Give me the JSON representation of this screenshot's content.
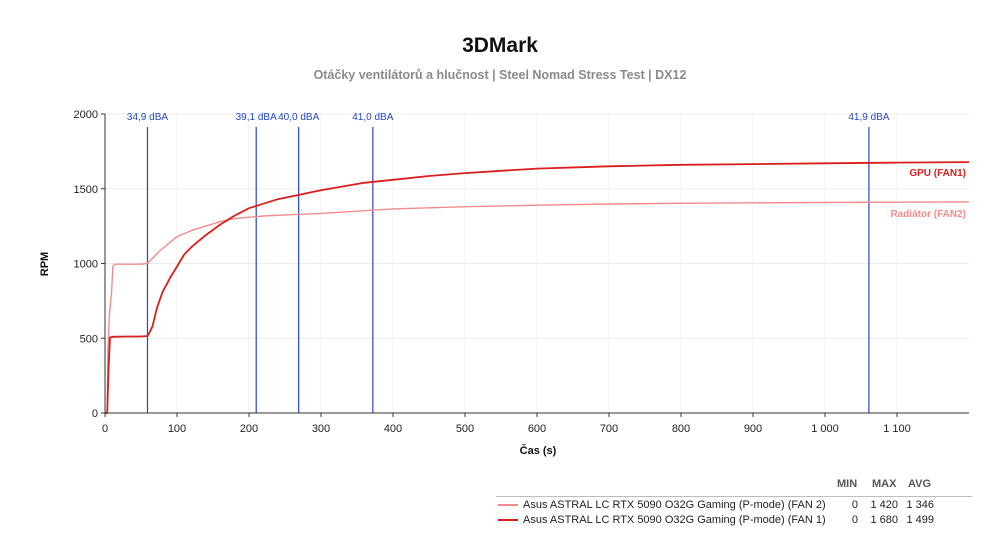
{
  "chart_data": {
    "type": "line",
    "title": "3DMark",
    "subtitle": "Otáčky ventilátorů a hlučnost | Steel Nomad Stress Test | DX12",
    "xlabel": "Čas (s)",
    "ylabel": "RPM",
    "xlim": [
      0,
      1200
    ],
    "ylim": [
      0,
      2000
    ],
    "x_ticks": [
      {
        "v": 0,
        "label": "0"
      },
      {
        "v": 100,
        "label": "100"
      },
      {
        "v": 200,
        "label": "200"
      },
      {
        "v": 300,
        "label": "300"
      },
      {
        "v": 400,
        "label": "400"
      },
      {
        "v": 500,
        "label": "500"
      },
      {
        "v": 600,
        "label": "600"
      },
      {
        "v": 700,
        "label": "700"
      },
      {
        "v": 800,
        "label": "800"
      },
      {
        "v": 900,
        "label": "900"
      },
      {
        "v": 1000,
        "label": "1 000"
      },
      {
        "v": 1100,
        "label": "1 100"
      }
    ],
    "y_ticks": [
      {
        "v": 0,
        "label": "0"
      },
      {
        "v": 500,
        "label": "500"
      },
      {
        "v": 1000,
        "label": "1000"
      },
      {
        "v": 1500,
        "label": "1500"
      },
      {
        "v": 2000,
        "label": "2000"
      }
    ],
    "grid": true,
    "noise_markers": [
      {
        "x": 59,
        "label": "34,9 dBA"
      },
      {
        "x": 210,
        "label": "39,1 dBA"
      },
      {
        "x": 269,
        "label": "40,0 dBA"
      },
      {
        "x": 372,
        "label": "41,0 dBA"
      },
      {
        "x": 1061,
        "label": "41,9 dBA"
      }
    ],
    "series": [
      {
        "name": "GPU (FAN1)",
        "legend_name": "Asus ASTRAL LC RTX 5090 O32G Gaming (P-mode) (FAN 1)",
        "color": "#d91e1e",
        "min": "0",
        "max": "1 680",
        "avg": "1 499",
        "points": [
          [
            0,
            0
          ],
          [
            3,
            0
          ],
          [
            5,
            300
          ],
          [
            7,
            505
          ],
          [
            10,
            510
          ],
          [
            30,
            512
          ],
          [
            50,
            512
          ],
          [
            59,
            515
          ],
          [
            62,
            540
          ],
          [
            66,
            580
          ],
          [
            72,
            700
          ],
          [
            80,
            810
          ],
          [
            90,
            900
          ],
          [
            100,
            980
          ],
          [
            110,
            1060
          ],
          [
            120,
            1110
          ],
          [
            140,
            1190
          ],
          [
            160,
            1260
          ],
          [
            180,
            1320
          ],
          [
            200,
            1370
          ],
          [
            220,
            1400
          ],
          [
            240,
            1430
          ],
          [
            260,
            1450
          ],
          [
            280,
            1470
          ],
          [
            300,
            1490
          ],
          [
            330,
            1515
          ],
          [
            360,
            1540
          ],
          [
            400,
            1560
          ],
          [
            450,
            1585
          ],
          [
            500,
            1605
          ],
          [
            550,
            1620
          ],
          [
            600,
            1635
          ],
          [
            700,
            1650
          ],
          [
            800,
            1660
          ],
          [
            900,
            1665
          ],
          [
            1000,
            1670
          ],
          [
            1100,
            1675
          ],
          [
            1200,
            1678
          ]
        ]
      },
      {
        "name": "Radiátor (FAN2)",
        "legend_name": "Asus ASTRAL LC RTX 5090 O32G Gaming (P-mode) (FAN 2)",
        "color": "#f28c8c",
        "min": "0",
        "max": "1 420",
        "avg": "1 346",
        "points": [
          [
            0,
            0
          ],
          [
            3,
            0
          ],
          [
            4,
            400
          ],
          [
            6,
            650
          ],
          [
            9,
            800
          ],
          [
            11,
            980
          ],
          [
            14,
            995
          ],
          [
            30,
            995
          ],
          [
            50,
            995
          ],
          [
            59,
            1000
          ],
          [
            65,
            1030
          ],
          [
            75,
            1080
          ],
          [
            90,
            1140
          ],
          [
            100,
            1180
          ],
          [
            120,
            1220
          ],
          [
            140,
            1250
          ],
          [
            160,
            1280
          ],
          [
            180,
            1300
          ],
          [
            200,
            1310
          ],
          [
            220,
            1318
          ],
          [
            250,
            1325
          ],
          [
            300,
            1335
          ],
          [
            350,
            1350
          ],
          [
            400,
            1365
          ],
          [
            500,
            1380
          ],
          [
            600,
            1390
          ],
          [
            700,
            1398
          ],
          [
            800,
            1403
          ],
          [
            900,
            1406
          ],
          [
            1000,
            1408
          ],
          [
            1100,
            1410
          ],
          [
            1200,
            1412
          ]
        ]
      }
    ],
    "legend_headers": {
      "min": "MIN",
      "max": "MAX",
      "avg": "AVG"
    }
  }
}
